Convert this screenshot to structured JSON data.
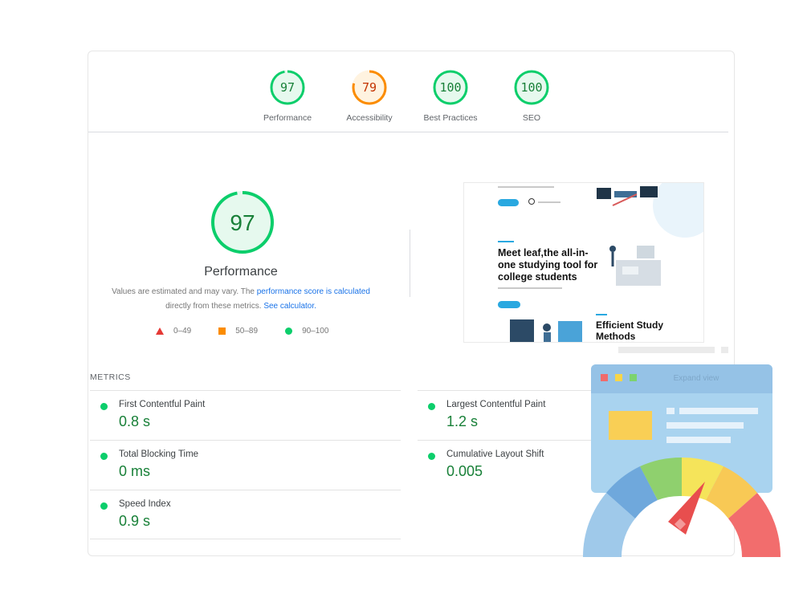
{
  "summary_scores": [
    {
      "value": "97",
      "label": "Performance",
      "color": "#0cce6b",
      "fraction": 0.97
    },
    {
      "value": "79",
      "label": "Accessibility",
      "color": "#fb8c00",
      "fraction": 0.79
    },
    {
      "value": "100",
      "label": "Best Practices",
      "color": "#0cce6b",
      "fraction": 1.0
    },
    {
      "value": "100",
      "label": "SEO",
      "color": "#0cce6b",
      "fraction": 1.0
    }
  ],
  "performance": {
    "score": "97",
    "title": "Performance",
    "desc_1": "Values are estimated and may vary. The ",
    "link_1": "performance score is calculated",
    "desc_2": "directly from these metrics. ",
    "link_2": "See calculator.",
    "legend": [
      {
        "shape": "triangle",
        "label": "0–49",
        "color": "#e53935"
      },
      {
        "shape": "square",
        "label": "50–89",
        "color": "#fb8c00"
      },
      {
        "shape": "circle",
        "label": "90–100",
        "color": "#0cce6b"
      }
    ]
  },
  "preview": {
    "heading_1": "Meet leaf,the all-in-one studying tool for college students",
    "heading_2": "Efficient Study Methods"
  },
  "metrics": {
    "title": "METRICS",
    "items": [
      {
        "name": "First Contentful Paint",
        "value": "0.8 s"
      },
      {
        "name": "Largest Contentful Paint",
        "value": "1.2 s"
      },
      {
        "name": "Total Blocking Time",
        "value": "0 ms"
      },
      {
        "name": "Cumulative Layout Shift",
        "value": "0.005"
      },
      {
        "name": "Speed Index",
        "value": "0.9 s"
      }
    ]
  },
  "illustration": {
    "expand_label": "Expand view"
  },
  "colors": {
    "good": "#0cce6b",
    "average": "#fb8c00",
    "poor": "#e53935",
    "link": "#1a73e8"
  }
}
